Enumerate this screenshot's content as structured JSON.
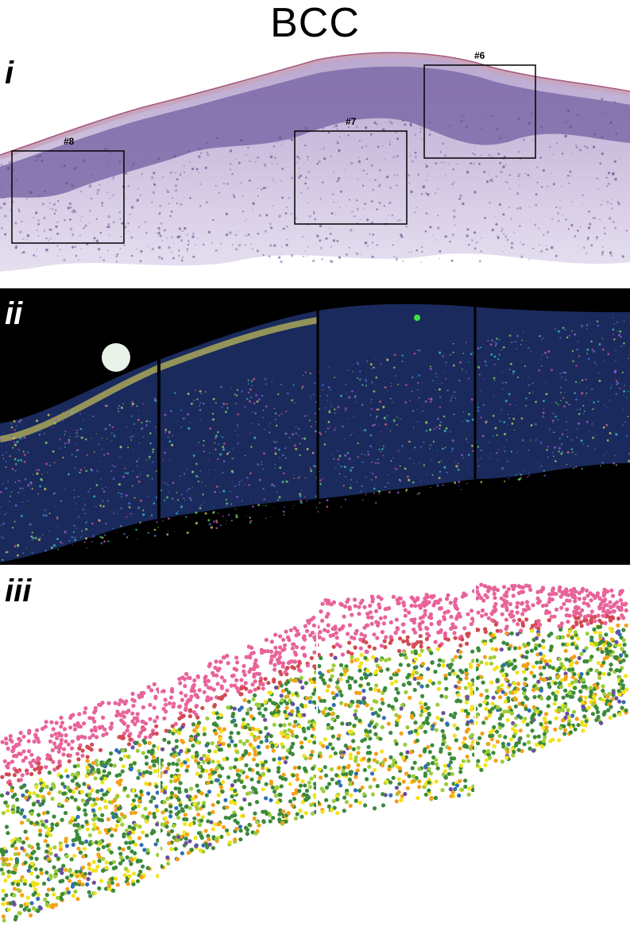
{
  "title": "BCC",
  "panels": {
    "he": {
      "label": "i",
      "rois": [
        {
          "id": "he-roi-8",
          "label": "#8"
        },
        {
          "id": "he-roi-7",
          "label": "#7"
        },
        {
          "id": "he-roi-6",
          "label": "#6"
        }
      ]
    },
    "fluorescence": {
      "label": "ii"
    },
    "spatial": {
      "label": "iii"
    }
  },
  "colors": {
    "he_tissue": "#d9cfe6",
    "he_epidermis": "#7c6aa8",
    "he_stratum": "#c7a6bf",
    "spot_pink": "#e8639a",
    "spot_red": "#d24a52",
    "spot_green": "#3b8a3a",
    "spot_lightgreen": "#9ccc3c",
    "spot_yellow": "#f3e21a",
    "spot_orange": "#f5a019",
    "spot_blue": "#2f6fb5",
    "spot_purple": "#6b4ea0"
  }
}
